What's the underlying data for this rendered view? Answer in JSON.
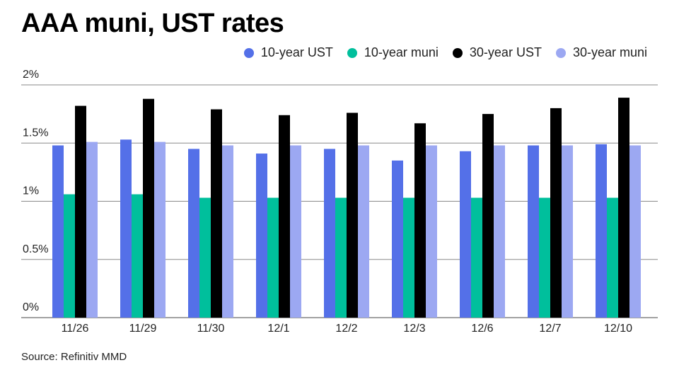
{
  "chart_data": {
    "type": "bar",
    "title": "AAA muni, UST rates",
    "source": "Source: Refinitiv MMD",
    "categories": [
      "11/26",
      "11/29",
      "11/30",
      "12/1",
      "12/2",
      "12/3",
      "12/6",
      "12/7",
      "12/10"
    ],
    "series": [
      {
        "name": "10-year UST",
        "color": "#5470e8",
        "values": [
          1.48,
          1.53,
          1.45,
          1.41,
          1.45,
          1.35,
          1.43,
          1.48,
          1.49
        ]
      },
      {
        "name": "10-year muni",
        "color": "#00bf9c",
        "values": [
          1.06,
          1.06,
          1.03,
          1.03,
          1.03,
          1.03,
          1.03,
          1.03,
          1.03
        ]
      },
      {
        "name": "30-year UST",
        "color": "#000000",
        "values": [
          1.82,
          1.88,
          1.79,
          1.74,
          1.76,
          1.67,
          1.75,
          1.8,
          1.89
        ]
      },
      {
        "name": "30-year muni",
        "color": "#9ca8f2",
        "values": [
          1.51,
          1.51,
          1.48,
          1.48,
          1.48,
          1.48,
          1.48,
          1.48,
          1.48
        ]
      }
    ],
    "yticks": [
      "0%",
      "0.5%",
      "1%",
      "1.5%",
      "2%"
    ],
    "ytick_values": [
      0,
      0.5,
      1,
      1.5,
      2
    ],
    "ylim": [
      0,
      2
    ],
    "grid": true,
    "legend_position": "top-right"
  }
}
